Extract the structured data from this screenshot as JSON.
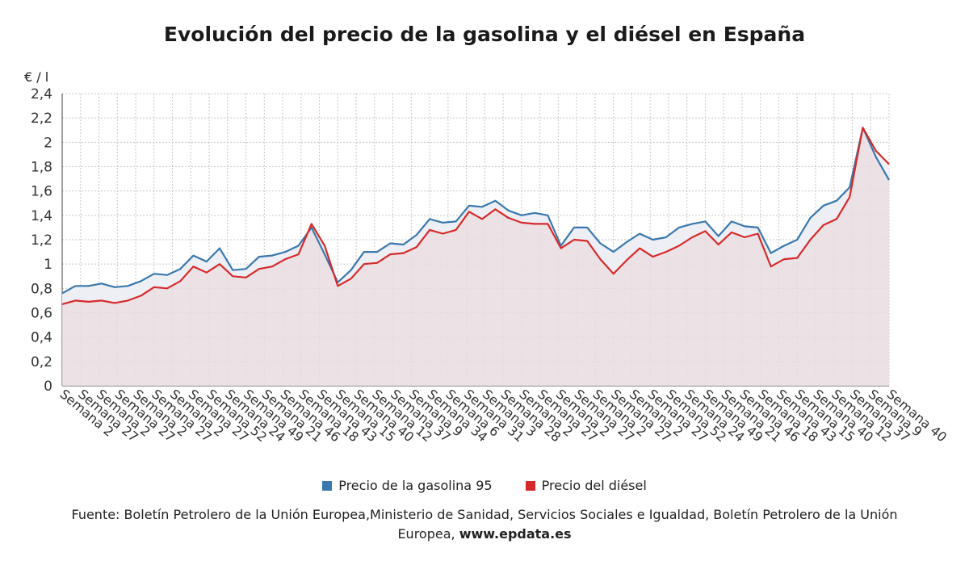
{
  "title": "Evolución del precio de la gasolina y el diésel en España",
  "unit": "€ / l",
  "legend": {
    "gasoline": "Precio de la gasolina 95",
    "diesel": "Precio del diésel"
  },
  "source": {
    "text": "Fuente: Boletín Petrolero de la Unión Europea,Ministerio de Sanidad, Servicios Sociales e Igualdad, Boletín Petrolero de la Unión Europea, ",
    "link": "www.epdata.es"
  },
  "colors": {
    "gasoline": "#3a78ad",
    "diesel": "#d62a2a",
    "area": "#e9dde1",
    "grid": "#c8c8c8"
  },
  "chart_data": {
    "type": "line",
    "ylim": [
      0,
      2.4
    ],
    "yticks": [
      "0",
      "0,2",
      "0,4",
      "0,6",
      "0,8",
      "1",
      "1,2",
      "1,4",
      "1,6",
      "1,8",
      "2",
      "2,2",
      "2,4"
    ],
    "x_tick_labels": [
      "Semana 2",
      "Semana 27",
      "Semana 2",
      "Semana 27",
      "Semana 2",
      "Semana 27",
      "Semana 2",
      "Semana 27",
      "Semana 52",
      "Semana 24",
      "Semana 49",
      "Semana 21",
      "Semana 46",
      "Semana 18",
      "Semana 43",
      "Semana 15",
      "Semana 40",
      "Semana 12",
      "Semana 37",
      "Semana 9",
      "Semana 34",
      "Semana 6",
      "Semana 31",
      "Semana 3",
      "Semana 28",
      "Semana 2",
      "Semana 27",
      "Semana 2",
      "Semana 27",
      "Semana 2",
      "Semana 27",
      "Semana 2",
      "Semana 27",
      "Semana 52",
      "Semana 24",
      "Semana 49",
      "Semana 21",
      "Semana 46",
      "Semana 18",
      "Semana 43",
      "Semana 15",
      "Semana 40",
      "Semana 12",
      "Semana 37",
      "Semana 9",
      "Semana 40"
    ],
    "series": [
      {
        "name": "Precio de la gasolina 95",
        "values": [
          0.76,
          0.82,
          0.82,
          0.84,
          0.81,
          0.82,
          0.86,
          0.92,
          0.91,
          0.96,
          1.07,
          1.02,
          1.13,
          0.95,
          0.96,
          1.06,
          1.07,
          1.1,
          1.15,
          1.3,
          1.08,
          0.85,
          0.95,
          1.1,
          1.1,
          1.17,
          1.16,
          1.24,
          1.37,
          1.34,
          1.35,
          1.48,
          1.47,
          1.52,
          1.44,
          1.4,
          1.42,
          1.4,
          1.15,
          1.3,
          1.3,
          1.17,
          1.1,
          1.18,
          1.25,
          1.2,
          1.22,
          1.3,
          1.33,
          1.35,
          1.23,
          1.35,
          1.31,
          1.3,
          1.09,
          1.15,
          1.2,
          1.38,
          1.48,
          1.52,
          1.63,
          2.12,
          1.88,
          1.69
        ]
      },
      {
        "name": "Precio del diésel",
        "values": [
          0.67,
          0.7,
          0.69,
          0.7,
          0.68,
          0.7,
          0.74,
          0.81,
          0.8,
          0.86,
          0.98,
          0.93,
          1.0,
          0.9,
          0.89,
          0.96,
          0.98,
          1.04,
          1.08,
          1.33,
          1.15,
          0.82,
          0.88,
          1.0,
          1.01,
          1.08,
          1.09,
          1.14,
          1.28,
          1.25,
          1.28,
          1.43,
          1.37,
          1.45,
          1.38,
          1.34,
          1.33,
          1.33,
          1.13,
          1.2,
          1.19,
          1.04,
          0.92,
          1.03,
          1.13,
          1.06,
          1.1,
          1.15,
          1.22,
          1.27,
          1.16,
          1.26,
          1.22,
          1.25,
          0.98,
          1.04,
          1.05,
          1.2,
          1.32,
          1.37,
          1.55,
          2.12,
          1.93,
          1.82
        ]
      }
    ]
  }
}
